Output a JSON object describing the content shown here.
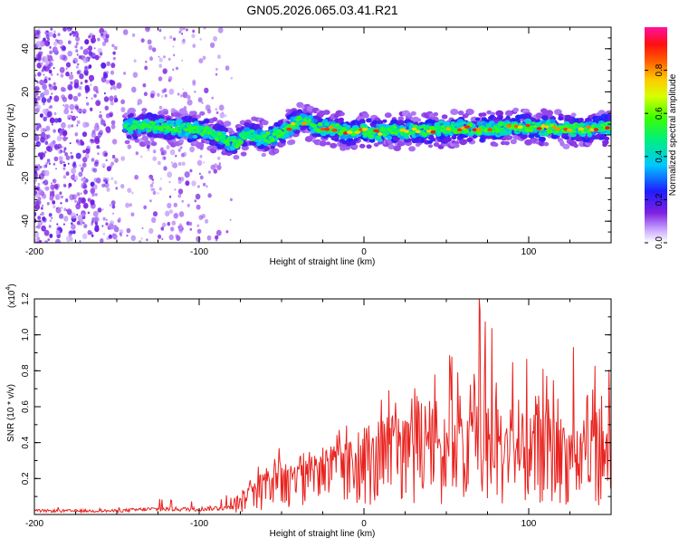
{
  "title": "GN05.2026.065.03.41.R21",
  "colors": {
    "snr_line": "#e8231f",
    "axis": "#000000",
    "plasma_low": "#8a20e8",
    "plasma_mid": "#00c8ff",
    "plasma_high": "#ff2020"
  },
  "chart_data": [
    {
      "type": "heatmap",
      "title": "GN05.2026.065.03.41.R21",
      "xlabel": "Height of straight line (km)",
      "ylabel": "Frequency (Hz)",
      "xlim": [
        -200,
        150
      ],
      "ylim": [
        -50,
        50
      ],
      "x_ticks": [
        -200,
        -100,
        0,
        100
      ],
      "y_ticks": [
        -40,
        -20,
        0,
        20,
        40
      ],
      "colorbar": {
        "label": "Normalized spectral amplitude",
        "range": [
          0.0,
          1.0
        ],
        "ticks": [
          "0.0",
          "0.2",
          "0.4",
          "0.6",
          "0.8"
        ],
        "colormap": "rainbow (white-purple-blue-cyan-green-yellow-red-magenta)"
      },
      "ridge": {
        "description": "dominant frequency ridge vs height",
        "x": [
          -145,
          -130,
          -110,
          -95,
          -85,
          -78,
          -70,
          -60,
          -50,
          -40,
          -35,
          -30,
          -20,
          -10,
          0,
          10,
          20,
          40,
          60,
          80,
          100,
          120,
          140,
          150
        ],
        "y": [
          4,
          4,
          3,
          2,
          -2,
          -4,
          1,
          -2,
          1,
          6,
          6,
          4,
          3,
          1,
          2,
          1,
          2,
          2,
          3,
          3,
          4,
          3,
          3,
          4
        ],
        "peak_amplitude": 0.95
      },
      "noise_region": {
        "x_range": [
          -200,
          -80
        ],
        "description": "scattered low-amplitude speckle"
      }
    },
    {
      "type": "line",
      "xlabel": "Height of straight line (km)",
      "ylabel": "SNR (10 * v/v)",
      "y_multiplier": "(x10^4)",
      "y_multiplier_base": "(x10",
      "y_multiplier_exp": "4",
      "y_multiplier_close": ")",
      "xlim": [
        -200,
        150
      ],
      "ylim": [
        0.0,
        1.2
      ],
      "x_ticks": [
        -200,
        -100,
        0,
        100
      ],
      "y_ticks": [
        0.2,
        0.4,
        0.6,
        0.8,
        1.0,
        1.2
      ],
      "series": [
        {
          "envelope_x": [
            -200,
            -150,
            -130,
            -100,
            -80,
            -70,
            -60,
            -40,
            -20,
            0,
            20,
            40,
            60,
            70,
            80,
            100,
            120,
            140,
            150
          ],
          "envelope_max": [
            0.03,
            0.03,
            0.08,
            0.05,
            0.09,
            0.22,
            0.35,
            0.4,
            0.48,
            0.52,
            0.75,
            0.95,
            0.9,
            1.2,
            1.0,
            1.0,
            1.0,
            0.95,
            0.85
          ],
          "envelope_mean": [
            0.02,
            0.02,
            0.03,
            0.03,
            0.04,
            0.1,
            0.18,
            0.2,
            0.26,
            0.28,
            0.35,
            0.38,
            0.35,
            0.4,
            0.38,
            0.36,
            0.36,
            0.34,
            0.33
          ],
          "peak": {
            "x": 70,
            "y": 1.2
          }
        }
      ]
    }
  ]
}
